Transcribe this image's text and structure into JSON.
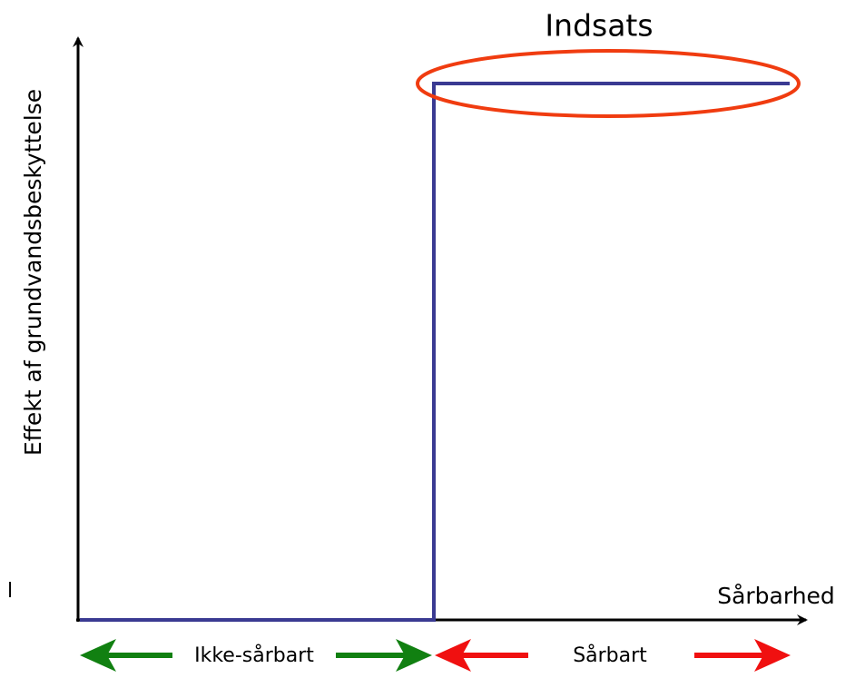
{
  "title": "Indsats",
  "y_axis_label": "Effekt af grundvandsbeskyttelse",
  "x_axis_label": "Sårbarhed",
  "zones": [
    "Ikke-sårbart",
    "Sårbart"
  ],
  "edge_fragment": "l"
}
